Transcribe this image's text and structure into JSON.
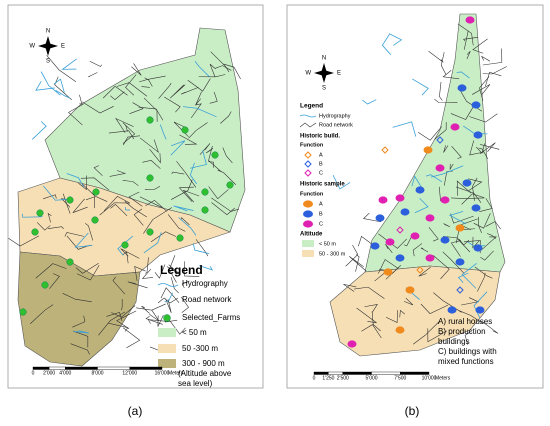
{
  "panel_a": {
    "compass": {
      "n": "N",
      "s": "S",
      "e": "E",
      "w": "W"
    },
    "legend": {
      "title": "Legend",
      "items": [
        "Hydrography",
        "Road network",
        "Selected_Farms",
        "< 50 m",
        "50 -300 m",
        "300 - 900 m"
      ],
      "note": [
        "(Altitude above",
        "sea level)"
      ]
    },
    "scale": {
      "labels": [
        "0",
        "2'000",
        "4'000",
        "8'000",
        "12'000",
        "16'000"
      ],
      "unit": "Meters"
    },
    "caption": "(a)"
  },
  "panel_b": {
    "compass": {
      "n": "N",
      "s": "S",
      "e": "E",
      "w": "W"
    },
    "legend": {
      "title": "Legend",
      "hydrography": "Hydrography",
      "roads": "Road network",
      "historic_build": "Historic build.",
      "build_function": "Function",
      "build_items": [
        "A",
        "B",
        "C"
      ],
      "historic_sample": "Historic sample",
      "sample_function": "Function",
      "sample_items": [
        "A",
        "B",
        "C"
      ],
      "altitude": "Altitude",
      "altitude_items": [
        "< 50 m",
        "50 - 300 m"
      ]
    },
    "notes": [
      [
        "A) rural houses"
      ],
      [
        "B) production",
        "buildings"
      ],
      [
        "C) buildings with",
        "mixed functions"
      ]
    ],
    "scale": {
      "labels": [
        "0",
        "1'250",
        "2'500",
        "5'000",
        "7'500",
        "10'000"
      ],
      "unit": "Meters"
    },
    "caption": "(b)"
  }
}
